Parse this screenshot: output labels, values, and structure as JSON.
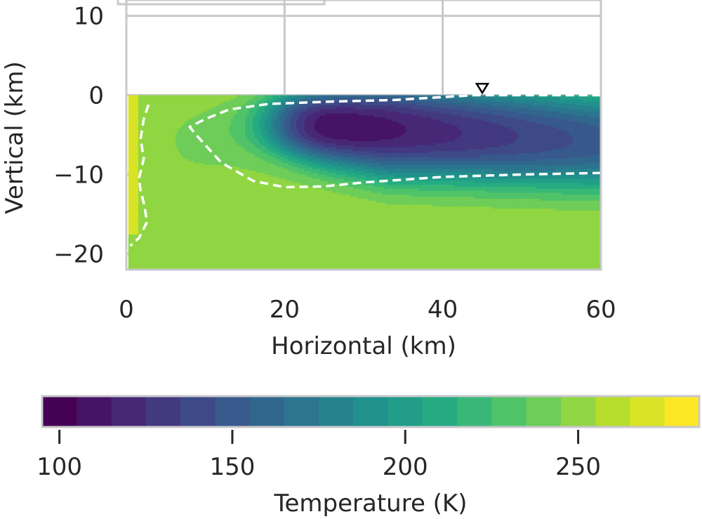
{
  "chart_data": {
    "type": "heatmap",
    "title": "",
    "xlabel": "Horizontal (km)",
    "ylabel": "Vertical (km)",
    "xlim": [
      0,
      60
    ],
    "ylim": [
      -22,
      12
    ],
    "xticks": [
      "0",
      "20",
      "40",
      "60"
    ],
    "yticks": [
      "10",
      "0",
      "−10",
      "−20"
    ],
    "grid": true,
    "colorbar": {
      "label": "Temperature (K)",
      "range": [
        95,
        285
      ],
      "ticks": [
        "100",
        "150",
        "200",
        "250"
      ],
      "levels": 19,
      "colormap": "viridis"
    },
    "surface_marker": {
      "x": 45,
      "y": 1
    },
    "fields": {
      "background_temperature": 255,
      "cold_core_temperature": 100,
      "warm_edge_temperature": 270,
      "contour_temperature": 240
    }
  },
  "colors": {
    "grid": "#c8c8cc",
    "frame": "#c8c8cc",
    "contour": "#ffffff"
  }
}
